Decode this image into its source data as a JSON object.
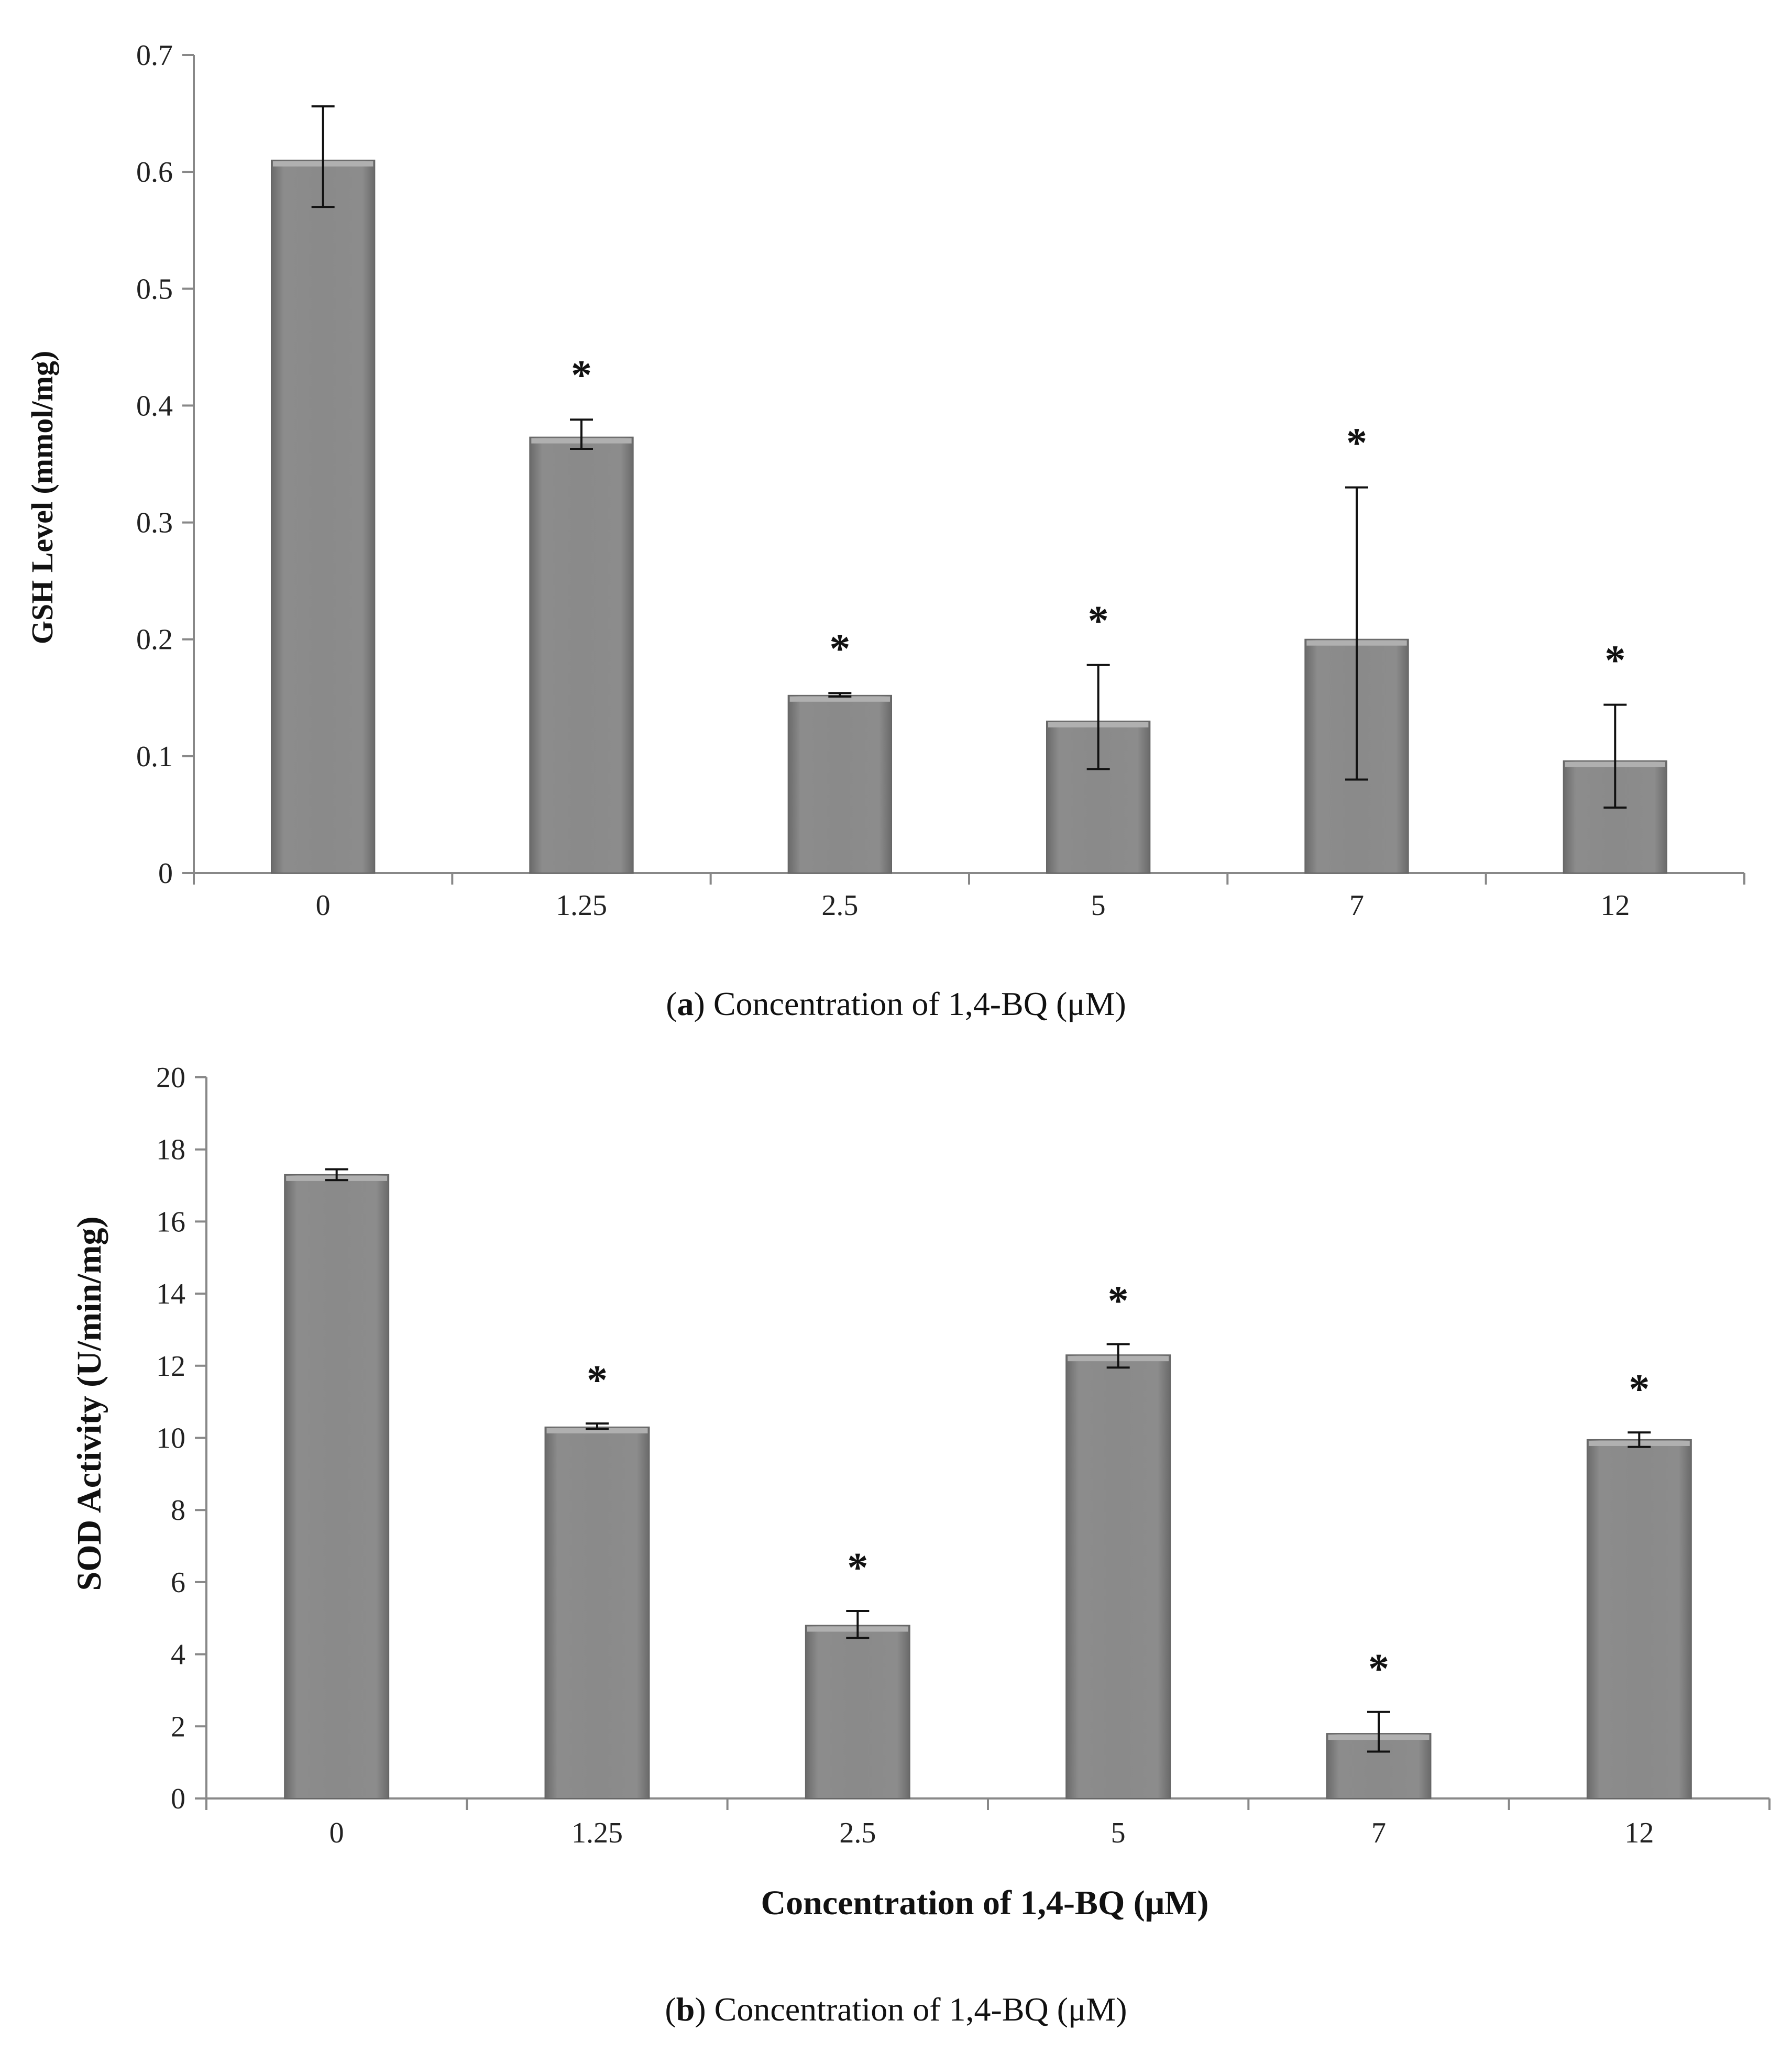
{
  "chart_data": [
    {
      "type": "bar",
      "panel": "a",
      "categories": [
        "0",
        "1.25",
        "2.5",
        "5",
        "7",
        "12"
      ],
      "values": [
        0.61,
        0.373,
        0.152,
        0.13,
        0.2,
        0.096
      ],
      "error_low": [
        0.57,
        0.363,
        0.151,
        0.089,
        0.08,
        0.056
      ],
      "error_high": [
        0.656,
        0.388,
        0.154,
        0.178,
        0.33,
        0.144
      ],
      "significance": [
        "",
        "*",
        "*",
        "*",
        "*",
        "*"
      ],
      "ylabel": "GSH Level (mmol/mg)",
      "xlabel": "",
      "ylim": [
        0,
        0.7
      ],
      "yticks": [
        "0",
        "0.1",
        "0.2",
        "0.3",
        "0.4",
        "0.5",
        "0.6",
        "0.7"
      ],
      "grid": false,
      "bar_color": "#8a8a8a"
    },
    {
      "type": "bar",
      "panel": "b",
      "categories": [
        "0",
        "1.25",
        "2.5",
        "5",
        "7",
        "12"
      ],
      "values": [
        17.3,
        10.3,
        4.8,
        12.3,
        1.8,
        9.95
      ],
      "error_low": [
        17.15,
        10.25,
        4.45,
        11.95,
        1.3,
        9.75
      ],
      "error_high": [
        17.45,
        10.4,
        5.2,
        12.6,
        2.4,
        10.15
      ],
      "significance": [
        "",
        "*",
        "*",
        "*",
        "*",
        "*"
      ],
      "ylabel": "SOD Activity (U/min/mg)",
      "xlabel": "Concentration of 1,4-BQ (μM)",
      "ylim": [
        0,
        20
      ],
      "yticks": [
        "0",
        "2",
        "4",
        "6",
        "8",
        "10",
        "12",
        "14",
        "16",
        "18",
        "20"
      ],
      "grid": false,
      "bar_color": "#8a8a8a"
    }
  ],
  "captions": {
    "a_label": "a",
    "a_text": " Concentration of 1,4-BQ (μM)",
    "b_label": "b",
    "b_text": " Concentration of 1,4-BQ (μM)"
  }
}
